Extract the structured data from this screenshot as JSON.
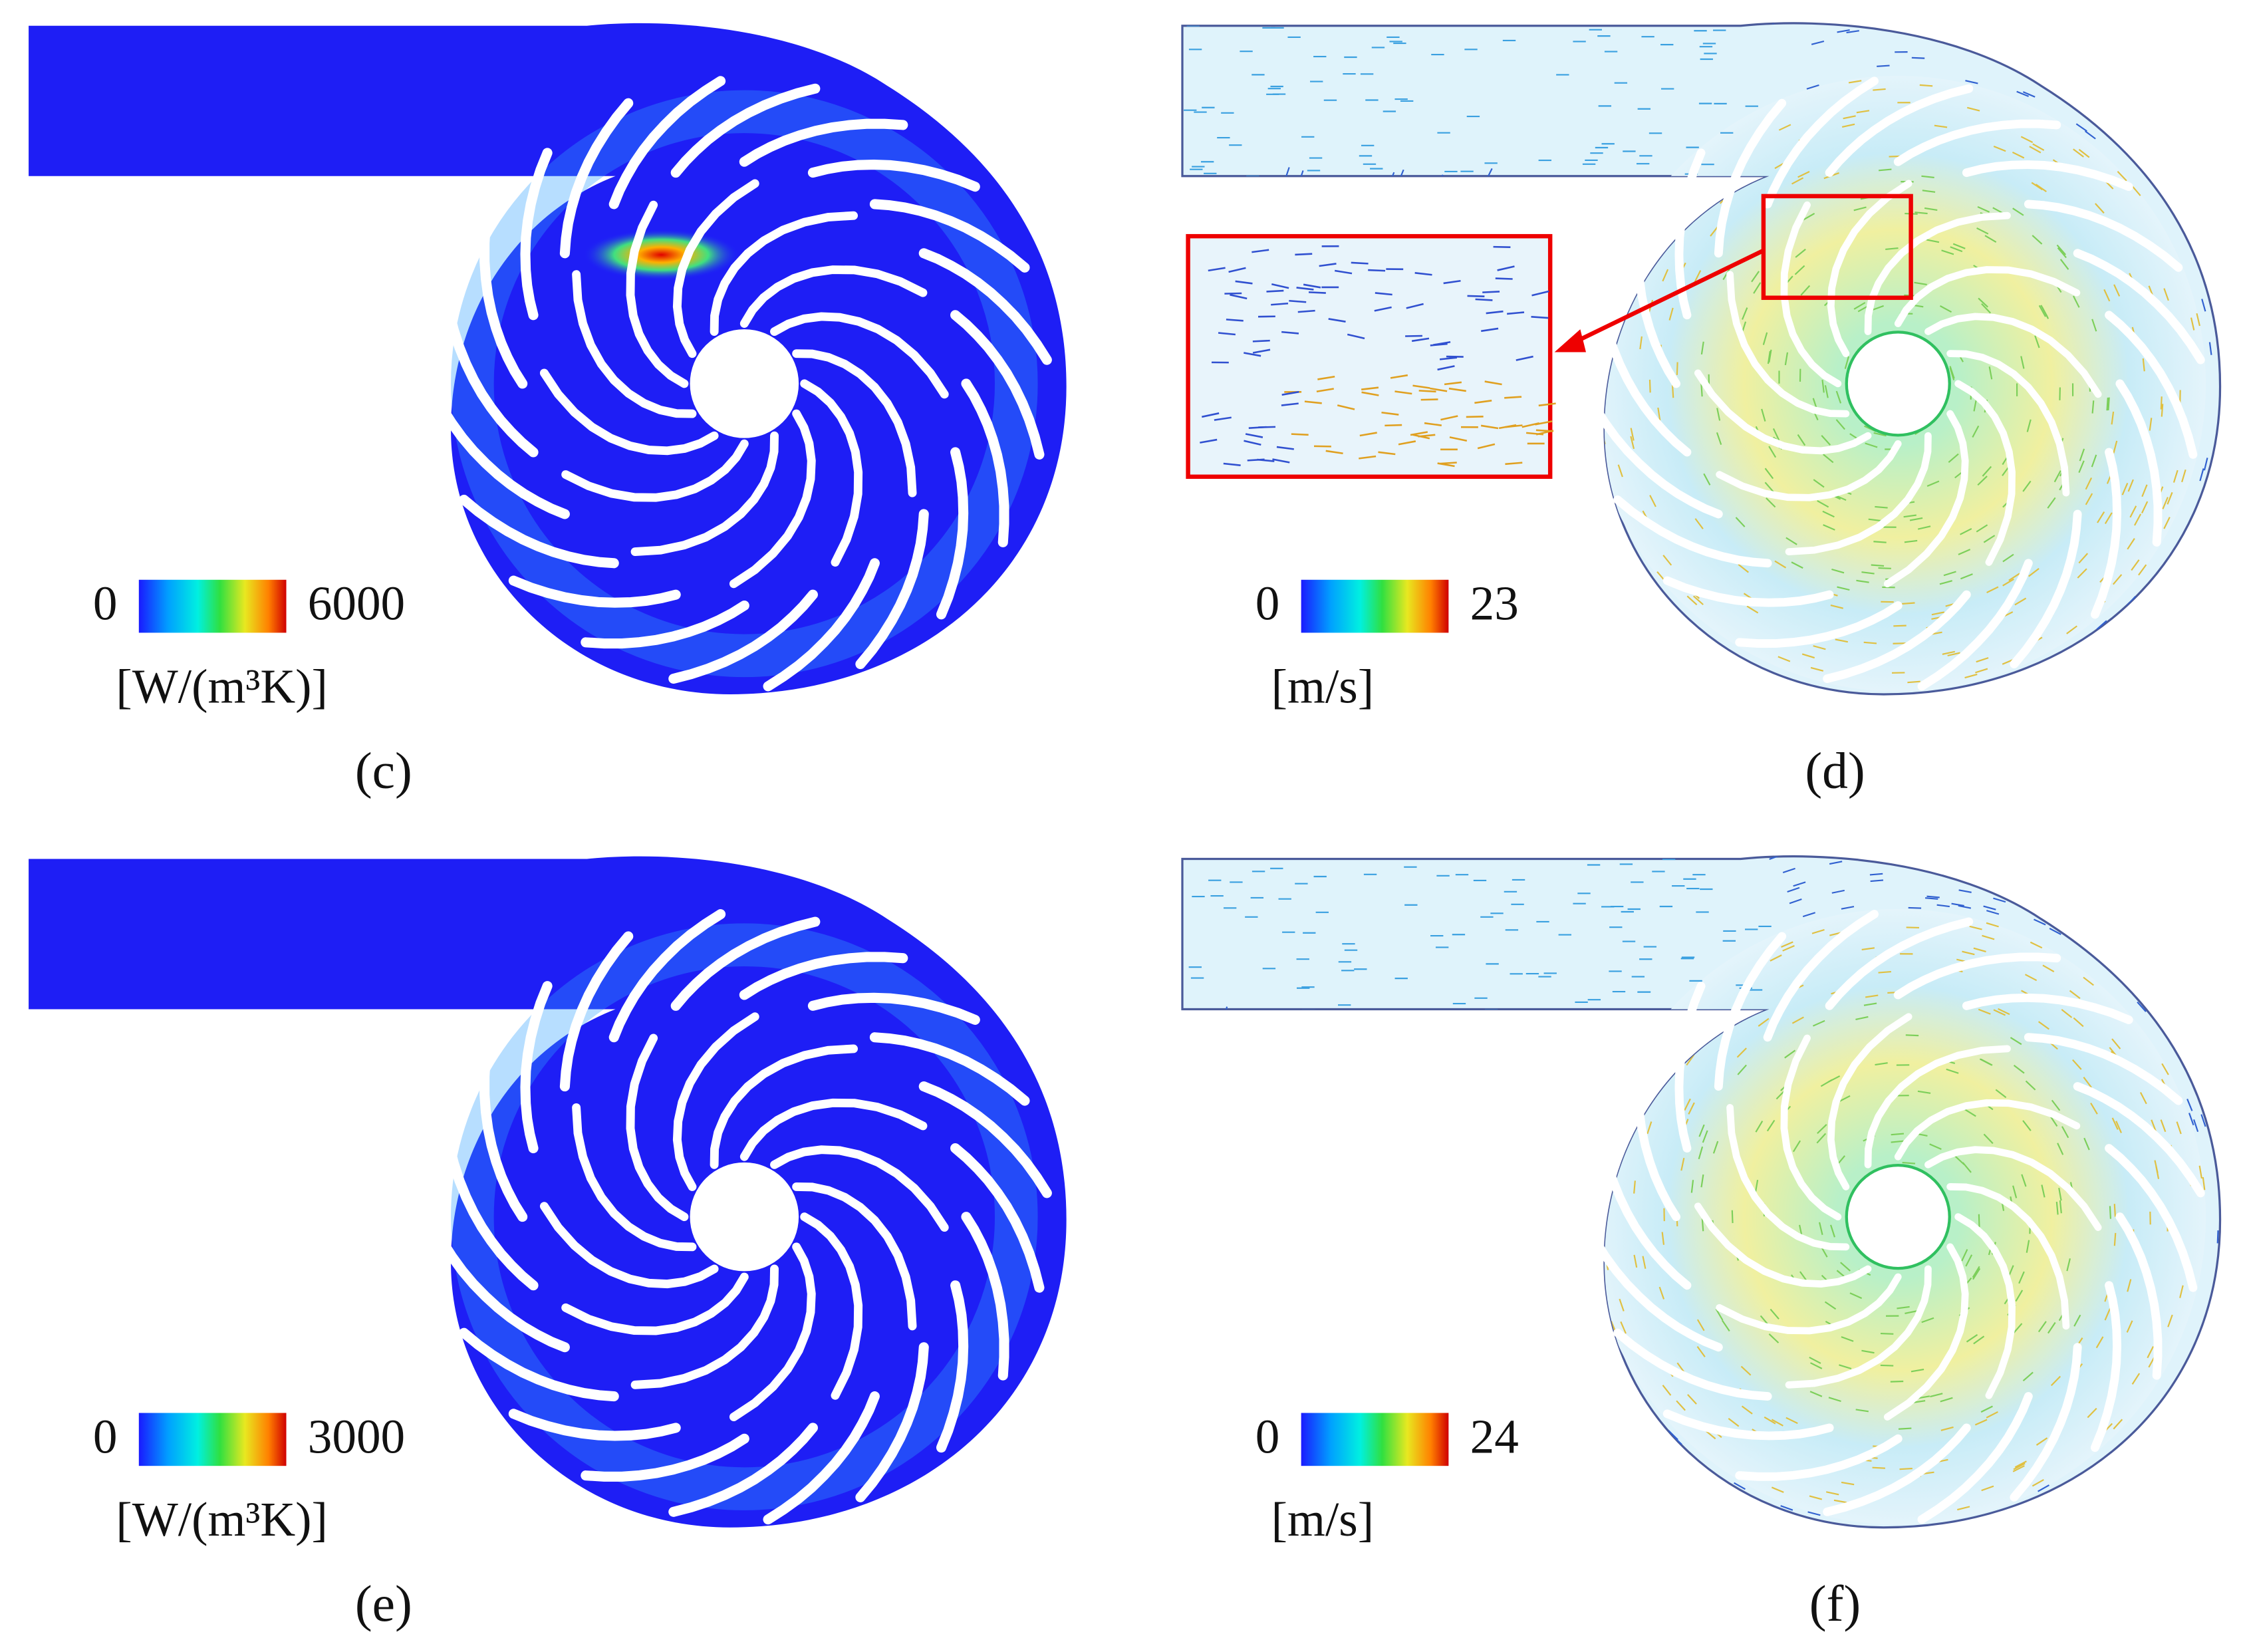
{
  "panels": [
    {
      "label": "(c)",
      "colorbar": {
        "min": 0,
        "max": 6000,
        "unit": "[W/(m³K)]"
      }
    },
    {
      "label": "(d)",
      "colorbar": {
        "min": 0,
        "max": 23,
        "unit": "[m/s]"
      }
    },
    {
      "label": "(e)",
      "colorbar": {
        "min": 0,
        "max": 3000,
        "unit": "[W/(m³K)]"
      }
    },
    {
      "label": "(f)",
      "colorbar": {
        "min": 0,
        "max": 24,
        "unit": "[m/s]"
      }
    }
  ]
}
